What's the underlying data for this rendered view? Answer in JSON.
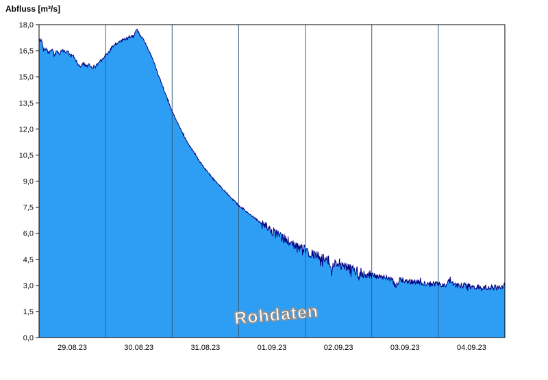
{
  "chart_data": {
    "type": "area",
    "title": "Abfluss [m³/s]",
    "watermark": "Rohdaten",
    "xlabel": "",
    "ylabel": "Abfluss [m³/s]",
    "ylim": [
      0,
      18
    ],
    "xlim_days": [
      0,
      7
    ],
    "grid": "vertical-only",
    "legend": "none",
    "y_tick_values": [
      0,
      1.5,
      3,
      4.5,
      6,
      7.5,
      9,
      10.5,
      12,
      13.5,
      15,
      16.5,
      18
    ],
    "y_tick_labels": [
      "0,0",
      "1,5",
      "3,0",
      "4,5",
      "6,0",
      "7,5",
      "9,0",
      "10,5",
      "12,0",
      "13,5",
      "15,0",
      "16,5",
      "18,0"
    ],
    "x_tick_labels": [
      "29.08.23",
      "30.08.23",
      "31.08.23",
      "01.09.23",
      "02.09.23",
      "03.09.23",
      "04.09.23"
    ],
    "x_tick_centers_days": [
      0.5,
      1.5,
      2.5,
      3.5,
      4.5,
      5.5,
      6.5
    ],
    "gridline_days": [
      1,
      2,
      3,
      4,
      5,
      6
    ],
    "series": [
      {
        "name": "Abfluss Rohdaten",
        "unit": "m³/s",
        "points": [
          [
            0.0,
            17.1
          ],
          [
            0.04,
            17.1
          ],
          [
            0.07,
            16.5
          ],
          [
            0.11,
            16.65
          ],
          [
            0.15,
            16.4
          ],
          [
            0.19,
            16.6
          ],
          [
            0.23,
            16.25
          ],
          [
            0.27,
            16.5
          ],
          [
            0.31,
            16.3
          ],
          [
            0.35,
            16.55
          ],
          [
            0.39,
            16.4
          ],
          [
            0.43,
            16.5
          ],
          [
            0.47,
            16.2
          ],
          [
            0.51,
            16.3
          ],
          [
            0.55,
            15.95
          ],
          [
            0.59,
            15.7
          ],
          [
            0.63,
            15.6
          ],
          [
            0.67,
            15.8
          ],
          [
            0.71,
            15.55
          ],
          [
            0.75,
            15.7
          ],
          [
            0.79,
            15.5
          ],
          [
            0.83,
            15.6
          ],
          [
            0.87,
            15.7
          ],
          [
            0.91,
            15.9
          ],
          [
            0.95,
            16.05
          ],
          [
            1.0,
            16.25
          ],
          [
            1.05,
            16.45
          ],
          [
            1.1,
            16.7
          ],
          [
            1.15,
            16.85
          ],
          [
            1.2,
            17.0
          ],
          [
            1.25,
            17.1
          ],
          [
            1.3,
            17.2
          ],
          [
            1.35,
            17.3
          ],
          [
            1.4,
            17.35
          ],
          [
            1.44,
            17.45
          ],
          [
            1.47,
            17.75
          ],
          [
            1.5,
            17.5
          ],
          [
            1.54,
            17.3
          ],
          [
            1.58,
            17.05
          ],
          [
            1.62,
            16.75
          ],
          [
            1.66,
            16.45
          ],
          [
            1.7,
            16.1
          ],
          [
            1.74,
            15.7
          ],
          [
            1.78,
            15.25
          ],
          [
            1.82,
            14.85
          ],
          [
            1.86,
            14.45
          ],
          [
            1.9,
            14.0
          ],
          [
            1.94,
            13.6
          ],
          [
            1.98,
            13.2
          ],
          [
            2.02,
            12.85
          ],
          [
            2.06,
            12.5
          ],
          [
            2.1,
            12.2
          ],
          [
            2.15,
            11.8
          ],
          [
            2.2,
            11.45
          ],
          [
            2.25,
            11.1
          ],
          [
            2.3,
            10.8
          ],
          [
            2.35,
            10.5
          ],
          [
            2.4,
            10.2
          ],
          [
            2.45,
            9.95
          ],
          [
            2.5,
            9.7
          ],
          [
            2.55,
            9.45
          ],
          [
            2.6,
            9.2
          ],
          [
            2.65,
            9.0
          ],
          [
            2.7,
            8.8
          ],
          [
            2.75,
            8.6
          ],
          [
            2.8,
            8.4
          ],
          [
            2.85,
            8.2
          ],
          [
            2.9,
            8.0
          ],
          [
            2.95,
            7.8
          ],
          [
            3.0,
            7.6
          ],
          [
            3.05,
            7.45
          ],
          [
            3.1,
            7.3
          ],
          [
            3.15,
            7.15
          ],
          [
            3.2,
            7.0
          ],
          [
            3.25,
            6.85
          ],
          [
            3.3,
            6.7
          ],
          [
            3.35,
            6.55
          ],
          [
            3.4,
            6.4
          ],
          [
            3.45,
            6.25
          ],
          [
            3.5,
            6.1
          ],
          [
            3.55,
            6.0
          ],
          [
            3.6,
            5.9
          ],
          [
            3.65,
            5.75
          ],
          [
            3.7,
            5.65
          ],
          [
            3.75,
            5.5
          ],
          [
            3.8,
            5.4
          ],
          [
            3.85,
            5.3
          ],
          [
            3.9,
            5.2
          ],
          [
            3.95,
            5.1
          ],
          [
            4.0,
            5.0
          ],
          [
            4.05,
            4.9
          ],
          [
            4.1,
            4.8
          ],
          [
            4.15,
            4.72
          ],
          [
            4.2,
            4.65
          ],
          [
            4.25,
            4.58
          ],
          [
            4.3,
            4.5
          ],
          [
            4.35,
            4.42
          ],
          [
            4.4,
            3.9
          ],
          [
            4.44,
            4.3
          ],
          [
            4.5,
            4.25
          ],
          [
            4.55,
            4.15
          ],
          [
            4.6,
            4.05
          ],
          [
            4.65,
            4.0
          ],
          [
            4.7,
            3.92
          ],
          [
            4.75,
            3.85
          ],
          [
            4.8,
            3.8
          ],
          [
            4.85,
            3.72
          ],
          [
            4.9,
            3.68
          ],
          [
            4.95,
            3.62
          ],
          [
            5.0,
            3.58
          ],
          [
            5.1,
            3.5
          ],
          [
            5.2,
            3.45
          ],
          [
            5.3,
            3.4
          ],
          [
            5.36,
            2.92
          ],
          [
            5.42,
            3.32
          ],
          [
            5.5,
            3.28
          ],
          [
            5.6,
            3.22
          ],
          [
            5.7,
            3.18
          ],
          [
            5.8,
            3.12
          ],
          [
            5.9,
            3.1
          ],
          [
            6.0,
            3.08
          ],
          [
            6.1,
            3.02
          ],
          [
            6.18,
            3.25
          ],
          [
            6.25,
            3.0
          ],
          [
            6.35,
            2.98
          ],
          [
            6.45,
            2.95
          ],
          [
            6.55,
            2.92
          ],
          [
            6.65,
            2.9
          ],
          [
            6.75,
            2.88
          ],
          [
            6.85,
            2.86
          ],
          [
            6.93,
            2.9
          ],
          [
            7.0,
            3.0
          ]
        ]
      }
    ],
    "noise_segments": [
      [
        0,
        1.55,
        0.09
      ],
      [
        1.55,
        3.35,
        0.05
      ],
      [
        3.35,
        5.0,
        0.3
      ],
      [
        5.0,
        7.0,
        0.16
      ]
    ],
    "noise_seed": 42,
    "colors": {
      "fill": "#2E9EF4",
      "line": "#000080",
      "grid": "#3A5A7A",
      "axis": "#000000",
      "background": "#FFFFFF"
    }
  }
}
